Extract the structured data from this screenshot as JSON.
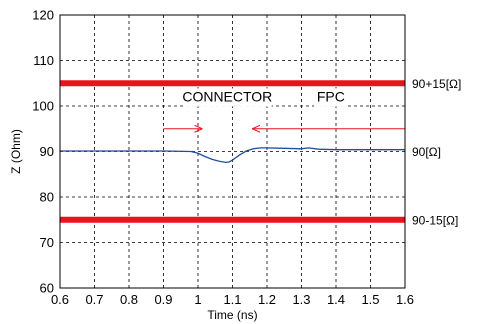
{
  "chart_data": {
    "type": "line",
    "xlabel": "Time (ns)",
    "ylabel": "Z (Ohm)",
    "xlim": [
      0.6,
      1.6
    ],
    "ylim": [
      60,
      120
    ],
    "x_ticks": [
      "0.6",
      "0.7",
      "0.8",
      "0.9",
      "1",
      "1.1",
      "1.2",
      "1.3",
      "1.4",
      "1.5",
      "1.6"
    ],
    "y_ticks": [
      "60",
      "70",
      "80",
      "90",
      "100",
      "110",
      "120"
    ],
    "grid": true,
    "series": [
      {
        "color": "#1f4e9c",
        "x": [
          0.6,
          0.7,
          0.8,
          0.9,
          0.98,
          1.0,
          1.02,
          1.04,
          1.06,
          1.08,
          1.09,
          1.1,
          1.12,
          1.14,
          1.16,
          1.18,
          1.2,
          1.25,
          1.3,
          1.32,
          1.35,
          1.4,
          1.5,
          1.6
        ],
        "y": [
          90.1,
          90.1,
          90.1,
          90.1,
          90.0,
          89.6,
          88.9,
          88.3,
          87.9,
          87.6,
          87.7,
          88.1,
          89.2,
          90.1,
          90.6,
          90.8,
          90.8,
          90.7,
          90.6,
          90.8,
          90.5,
          90.4,
          90.4,
          90.4
        ]
      }
    ],
    "reference_lines": [
      {
        "y": 105,
        "label": "90+15[Ω]",
        "color": "#e8141b"
      },
      {
        "y": 90,
        "label": "90[Ω]"
      },
      {
        "y": 75,
        "label": "90-15[Ω]",
        "color": "#e8141b"
      }
    ],
    "annotations": [
      {
        "text": "CONNECTOR",
        "x": 1.085,
        "y": 101
      },
      {
        "text": "FPC",
        "x": 1.385,
        "y": 101
      }
    ],
    "arrows": [
      {
        "x_from": 0.9,
        "x_to": 1.01,
        "y": 95,
        "color": "#e8141b"
      },
      {
        "x_from": 1.6,
        "x_to": 1.16,
        "y": 95,
        "color": "#e8141b"
      }
    ]
  }
}
